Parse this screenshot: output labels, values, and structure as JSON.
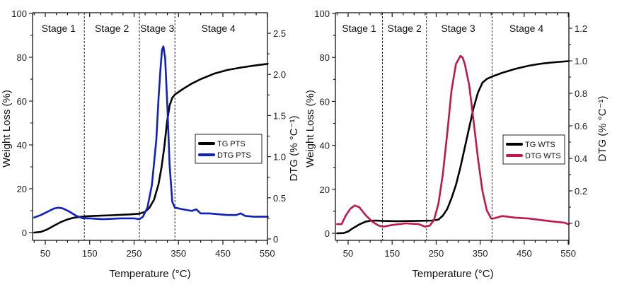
{
  "chart_data": [
    {
      "type": "line",
      "title": "",
      "xlabel": "Temperature (°C)",
      "ylabel": "Weight Loss (%)",
      "y2label": "DTG (% °C⁻¹)",
      "xlim": [
        21,
        551
      ],
      "ylim": [
        -3,
        100
      ],
      "y2lim": [
        0,
        2.6
      ],
      "xticks": [
        50,
        150,
        250,
        350,
        450,
        550
      ],
      "yticks": [
        0,
        20,
        40,
        60,
        80,
        100
      ],
      "y2ticks": [
        0,
        0.5,
        1.0,
        1.5,
        2.0,
        2.5
      ],
      "y2tick_labels": [
        "0",
        "0.5",
        "1.0",
        "1.5",
        "2.0",
        "2.5"
      ],
      "stage_boundaries": [
        138,
        262,
        342
      ],
      "stages": [
        {
          "label": "Stage 1",
          "x": 80
        },
        {
          "label": "Stage 2",
          "x": 200
        },
        {
          "label": "Stage 3",
          "x": 302
        },
        {
          "label": "Stage 4",
          "x": 440
        }
      ],
      "legend": {
        "position": "center-right",
        "entries": [
          "TG PTS",
          "DTG PTS"
        ]
      },
      "series": [
        {
          "name": "TG PTS",
          "axis": "left",
          "color": "#000000",
          "x": [
            25,
            40,
            55,
            70,
            85,
            100,
            115,
            130,
            140,
            160,
            200,
            240,
            262,
            275,
            285,
            295,
            305,
            312,
            318,
            324,
            330,
            336,
            342,
            360,
            380,
            400,
            430,
            460,
            490,
            520,
            551
          ],
          "y": [
            0,
            0.3,
            1.5,
            3.2,
            4.8,
            6.0,
            6.8,
            7.2,
            7.4,
            7.6,
            7.9,
            8.3,
            8.6,
            9.5,
            11.5,
            15,
            22,
            30,
            39,
            50,
            58,
            61.5,
            63,
            65.5,
            68,
            70,
            72.5,
            74.2,
            75.3,
            76.2,
            77
          ]
        },
        {
          "name": "DTG PTS",
          "axis": "right",
          "color": "#1020c0",
          "x": [
            25,
            40,
            55,
            70,
            80,
            90,
            105,
            120,
            135,
            150,
            180,
            220,
            250,
            262,
            270,
            280,
            290,
            300,
            305,
            310,
            313,
            316,
            320,
            325,
            330,
            336,
            342,
            360,
            380,
            390,
            400,
            420,
            440,
            460,
            480,
            490,
            500,
            520,
            551
          ],
          "y": [
            0.26,
            0.29,
            0.33,
            0.37,
            0.38,
            0.37,
            0.33,
            0.28,
            0.25,
            0.25,
            0.24,
            0.25,
            0.25,
            0.24,
            0.27,
            0.38,
            0.65,
            1.2,
            1.7,
            2.1,
            2.3,
            2.34,
            2.2,
            1.6,
            0.9,
            0.45,
            0.38,
            0.36,
            0.34,
            0.36,
            0.31,
            0.31,
            0.3,
            0.29,
            0.29,
            0.31,
            0.28,
            0.27,
            0.27
          ]
        }
      ]
    },
    {
      "type": "line",
      "title": "",
      "xlabel": "Temperature (°C)",
      "ylabel": "Weight Loss (%)",
      "y2label": "DTG (% °C⁻¹)",
      "xlim": [
        21,
        551
      ],
      "ylim": [
        -4,
        100
      ],
      "y2lim": [
        -0.1,
        1.3
      ],
      "xticks": [
        50,
        150,
        250,
        350,
        450,
        550
      ],
      "yticks": [
        0,
        20,
        40,
        60,
        80,
        100
      ],
      "y2ticks": [
        0,
        0.2,
        0.4,
        0.6,
        0.8,
        1.0,
        1.2
      ],
      "y2tick_labels": [
        "0",
        "0.2",
        "0.4",
        "0.6",
        "0.8",
        "1.0",
        "1.2"
      ],
      "stage_boundaries": [
        128,
        228,
        377
      ],
      "stages": [
        {
          "label": "Stage 1",
          "x": 75
        },
        {
          "label": "Stage 2",
          "x": 178
        },
        {
          "label": "Stage 3",
          "x": 300
        },
        {
          "label": "Stage 4",
          "x": 455
        }
      ],
      "legend": {
        "position": "center-right",
        "entries": [
          "TG WTS",
          "DTG WTS"
        ]
      },
      "series": [
        {
          "name": "TG WTS",
          "axis": "left",
          "color": "#000000",
          "x": [
            25,
            40,
            50,
            60,
            75,
            90,
            100,
            115,
            130,
            160,
            200,
            240,
            255,
            265,
            275,
            285,
            295,
            305,
            315,
            325,
            335,
            345,
            355,
            365,
            377,
            400,
            430,
            460,
            490,
            520,
            551
          ],
          "y": [
            0,
            0.1,
            0.8,
            2.2,
            4.0,
            5.3,
            5.7,
            5.8,
            5.6,
            5.5,
            5.6,
            5.8,
            6.2,
            8,
            11,
            16,
            22,
            30,
            39,
            48,
            57,
            64,
            68.5,
            70.2,
            71.3,
            73,
            74.8,
            76.2,
            77.2,
            77.8,
            78.3
          ]
        },
        {
          "name": "DTG WTS",
          "axis": "right",
          "color": "#c0184a",
          "x": [
            25,
            35,
            45,
            55,
            65,
            75,
            90,
            105,
            120,
            130,
            150,
            180,
            210,
            225,
            235,
            245,
            255,
            265,
            275,
            285,
            295,
            305,
            310,
            315,
            325,
            335,
            345,
            355,
            365,
            375,
            380,
            400,
            430,
            460,
            490,
            520,
            540,
            551
          ],
          "y": [
            -0.005,
            -0.005,
            0.05,
            0.09,
            0.11,
            0.1,
            0.05,
            0.01,
            -0.015,
            -0.02,
            -0.01,
            0.0,
            -0.005,
            -0.02,
            -0.015,
            0.02,
            0.12,
            0.3,
            0.55,
            0.82,
            0.98,
            1.03,
            1.02,
            0.98,
            0.85,
            0.63,
            0.4,
            0.2,
            0.08,
            0.03,
            0.03,
            0.045,
            0.035,
            0.03,
            0.02,
            0.01,
            0.005,
            -0.005
          ]
        }
      ]
    }
  ]
}
